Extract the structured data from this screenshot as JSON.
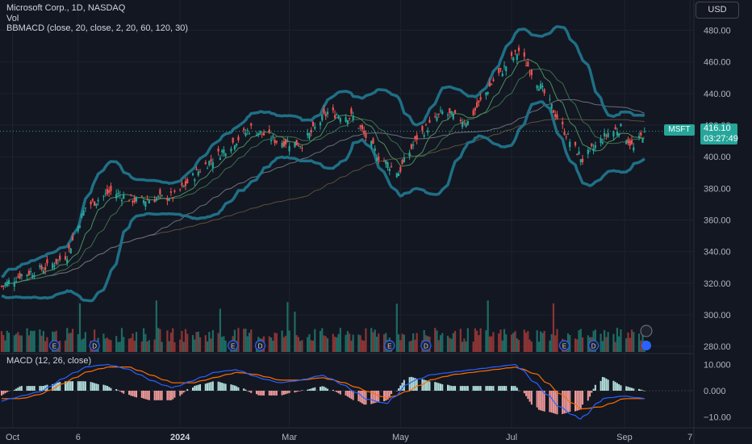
{
  "header": {
    "symbol_line": "Microsoft Corp., 1D, NASDAQ",
    "vol_label": "Vol",
    "bbmacd_label": "BBMACD (close, 20, close, 2, 20, 60, 120, 30)",
    "macd_label": "MACD (12, 26, close)",
    "currency": "USD"
  },
  "price_badge": {
    "symbol": "MSFT",
    "price": "416.10",
    "countdown": "03:27:49"
  },
  "colors": {
    "background": "#131722",
    "up": "#26a69a",
    "down": "#ef5350",
    "band": "#1f6f85",
    "macd_line": "#2962ff",
    "signal_line": "#ff6d00"
  },
  "chart_data": [
    {
      "type": "candlestick",
      "title": "Microsoft Corp., 1D, NASDAQ",
      "ylim": [
        275,
        490
      ],
      "y_ticks": [
        "480.00",
        "460.00",
        "440.00",
        "420.00",
        "400.00",
        "380.00",
        "360.00",
        "340.00",
        "320.00",
        "300.00",
        "280.00"
      ],
      "x_ticks": [
        "Oct",
        "6",
        "2024",
        "Mar",
        "May",
        "Jul",
        "Sep",
        "7"
      ],
      "x_range": [
        "2023-09-25",
        "2024-10-10"
      ],
      "close_keypoints": [
        {
          "x": "2023-09-25",
          "y": 318
        },
        {
          "x": "2023-10-05",
          "y": 325
        },
        {
          "x": "2023-10-20",
          "y": 330
        },
        {
          "x": "2023-10-31",
          "y": 338
        },
        {
          "x": "2023-11-10",
          "y": 368
        },
        {
          "x": "2023-11-24",
          "y": 378
        },
        {
          "x": "2023-12-08",
          "y": 372
        },
        {
          "x": "2023-12-29",
          "y": 375
        },
        {
          "x": "2024-01-12",
          "y": 392
        },
        {
          "x": "2024-01-26",
          "y": 405
        },
        {
          "x": "2024-02-09",
          "y": 418
        },
        {
          "x": "2024-02-23",
          "y": 410
        },
        {
          "x": "2024-03-08",
          "y": 408
        },
        {
          "x": "2024-03-22",
          "y": 428
        },
        {
          "x": "2024-04-05",
          "y": 425
        },
        {
          "x": "2024-04-19",
          "y": 400
        },
        {
          "x": "2024-04-30",
          "y": 390
        },
        {
          "x": "2024-05-10",
          "y": 412
        },
        {
          "x": "2024-05-24",
          "y": 428
        },
        {
          "x": "2024-06-07",
          "y": 422
        },
        {
          "x": "2024-06-21",
          "y": 448
        },
        {
          "x": "2024-07-05",
          "y": 467
        },
        {
          "x": "2024-07-19",
          "y": 440
        },
        {
          "x": "2024-08-02",
          "y": 410
        },
        {
          "x": "2024-08-09",
          "y": 398
        },
        {
          "x": "2024-08-23",
          "y": 415
        },
        {
          "x": "2024-08-30",
          "y": 418
        },
        {
          "x": "2024-09-06",
          "y": 405
        },
        {
          "x": "2024-09-12",
          "y": 416
        }
      ],
      "last_price": 416.1
    },
    {
      "type": "bar",
      "title": "Vol",
      "note": "daily volume histogram, colored by candle direction"
    },
    {
      "type": "line",
      "title": "MACD (12, 26, close)",
      "ylim": [
        -13,
        13
      ],
      "y_ticks": [
        "10.000",
        "0.000",
        "−10.00"
      ],
      "series": [
        {
          "name": "MACD",
          "values": [
            -4,
            -2,
            0,
            5,
            9,
            10,
            8,
            4,
            1,
            4,
            7,
            8,
            5,
            3,
            4,
            6,
            2,
            -3,
            -5,
            3,
            6,
            7,
            8,
            9,
            10,
            2,
            -6,
            -11,
            -3,
            -2,
            -3
          ]
        },
        {
          "name": "Signal",
          "values": [
            -3,
            -3,
            -1,
            3,
            7,
            9,
            9,
            6,
            3,
            3,
            5,
            7,
            6,
            4,
            4,
            5,
            3,
            0,
            -3,
            0,
            4,
            6,
            7,
            8,
            9,
            6,
            -1,
            -7,
            -6,
            -3,
            -3
          ]
        }
      ]
    }
  ],
  "events": [
    "E",
    "D",
    "E",
    "D",
    "E",
    "D",
    "E",
    "D"
  ],
  "bottom_axis": [
    "Oct",
    "6",
    "2024",
    "Mar",
    "May",
    "Jul",
    "Sep",
    "7"
  ],
  "macd_axis": [
    "10.000",
    "0.000",
    "−10.00"
  ]
}
